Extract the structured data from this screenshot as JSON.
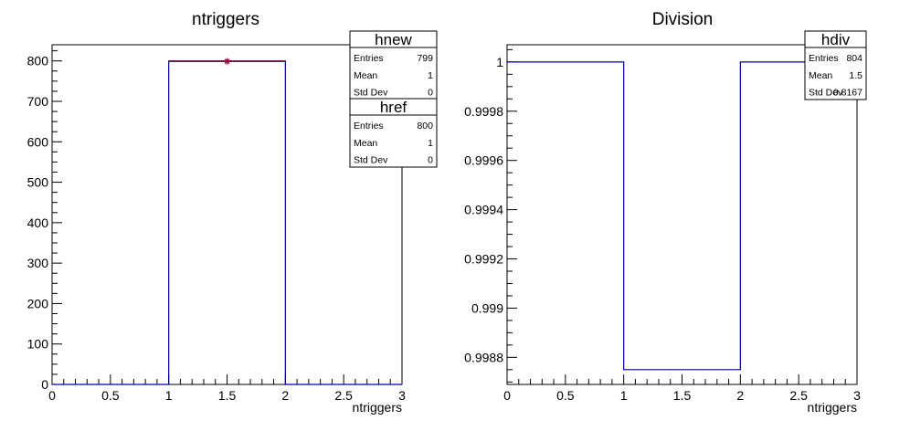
{
  "chart_data": [
    {
      "type": "bar",
      "title": "ntriggers",
      "xlabel": "ntriggers",
      "ylabel": "",
      "xlim": [
        0,
        3
      ],
      "ylim": [
        0,
        840
      ],
      "x_ticks": [
        "0",
        "0.5",
        "1",
        "1.5",
        "2",
        "2.5",
        "3"
      ],
      "y_ticks": [
        "0",
        "100",
        "200",
        "300",
        "400",
        "500",
        "600",
        "700",
        "800"
      ],
      "bins": [
        [
          0,
          1
        ],
        [
          1,
          2
        ],
        [
          2,
          3
        ]
      ],
      "series": [
        {
          "name": "href",
          "style": "step",
          "color": "#000099",
          "values": [
            0,
            800,
            0
          ]
        },
        {
          "name": "hnew",
          "style": "markers",
          "color": "#990033",
          "values": [
            0,
            799,
            0
          ]
        }
      ],
      "stats": [
        {
          "name": "hnew",
          "rows": [
            {
              "label": "Entries",
              "value": "799"
            },
            {
              "label": "Mean",
              "value": "1"
            },
            {
              "label": "Std Dev",
              "value": "0"
            }
          ]
        },
        {
          "name": "href",
          "rows": [
            {
              "label": "Entries",
              "value": "800"
            },
            {
              "label": "Mean",
              "value": "1"
            },
            {
              "label": "Std Dev",
              "value": "0"
            }
          ]
        }
      ]
    },
    {
      "type": "bar",
      "title": "Division",
      "xlabel": "ntriggers",
      "ylabel": "",
      "xlim": [
        0,
        3
      ],
      "ylim": [
        0.99869,
        1.00007
      ],
      "x_ticks": [
        "0",
        "0.5",
        "1",
        "1.5",
        "2",
        "2.5",
        "3"
      ],
      "y_ticks": [
        "0.9988",
        "0.999",
        "0.9992",
        "0.9994",
        "0.9996",
        "0.9998",
        "1"
      ],
      "bins": [
        [
          0,
          1
        ],
        [
          1,
          2
        ],
        [
          2,
          3
        ]
      ],
      "series": [
        {
          "name": "hdiv",
          "style": "step",
          "color": "#000099",
          "values": [
            1,
            0.99875,
            1
          ]
        }
      ],
      "stats": [
        {
          "name": "hdiv",
          "rows": [
            {
              "label": "Entries",
              "value": "804"
            },
            {
              "label": "Mean",
              "value": "1.5"
            },
            {
              "label": "Std Dev",
              "value": "0.8167"
            }
          ]
        }
      ]
    }
  ]
}
